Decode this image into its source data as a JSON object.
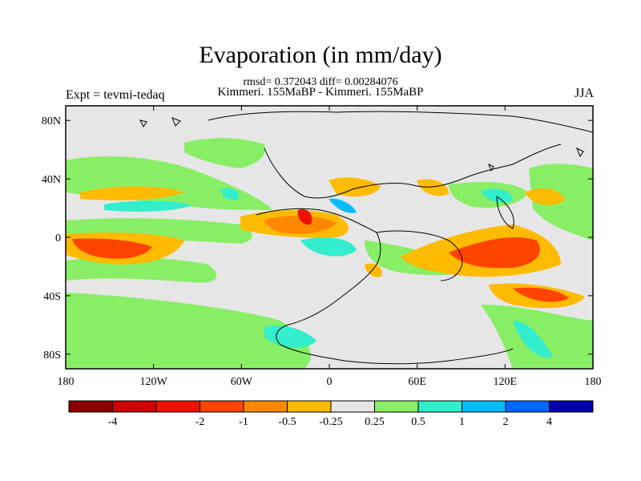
{
  "title": "Evaporation (in mm/day)",
  "stats_line": "rmsd= 0.372043 diff= 0.00284076",
  "subtitle": "Kimmeri. 155MaBP - Kimmeri. 155MaBP",
  "experiment_label": "Expt = tevmi-tedaq",
  "season": "JJA",
  "map": {
    "projection": "cylindrical-equidistant",
    "lon_range": [
      -180,
      180
    ],
    "lat_range": [
      -90,
      90
    ],
    "x_ticks": [
      {
        "value": -180,
        "label": "180"
      },
      {
        "value": -120,
        "label": "120W"
      },
      {
        "value": -60,
        "label": "60W"
      },
      {
        "value": 0,
        "label": "0"
      },
      {
        "value": 60,
        "label": "60E"
      },
      {
        "value": 120,
        "label": "120E"
      },
      {
        "value": 180,
        "label": "180"
      }
    ],
    "y_ticks": [
      {
        "value": 80,
        "label": "80N"
      },
      {
        "value": 40,
        "label": "40N"
      },
      {
        "value": 0,
        "label": "0"
      },
      {
        "value": -40,
        "label": "40S"
      },
      {
        "value": -80,
        "label": "80S"
      }
    ],
    "background_color": "#e6e6e6"
  },
  "colorbar": {
    "colors": [
      "#8b0000",
      "#cc0000",
      "#ee1100",
      "#ff4400",
      "#ff8800",
      "#ffbb00",
      "#e6e6e6",
      "#88ee66",
      "#33eecc",
      "#00bbff",
      "#0066ff",
      "#0000aa"
    ],
    "labels": [
      "-4",
      "-2",
      "-1",
      "-0.5",
      "-0.25",
      "0.25",
      "0.5",
      "1",
      "2",
      "4"
    ],
    "label_after_box": [
      1,
      3,
      4,
      5,
      6,
      7,
      8,
      9,
      10,
      11
    ]
  }
}
